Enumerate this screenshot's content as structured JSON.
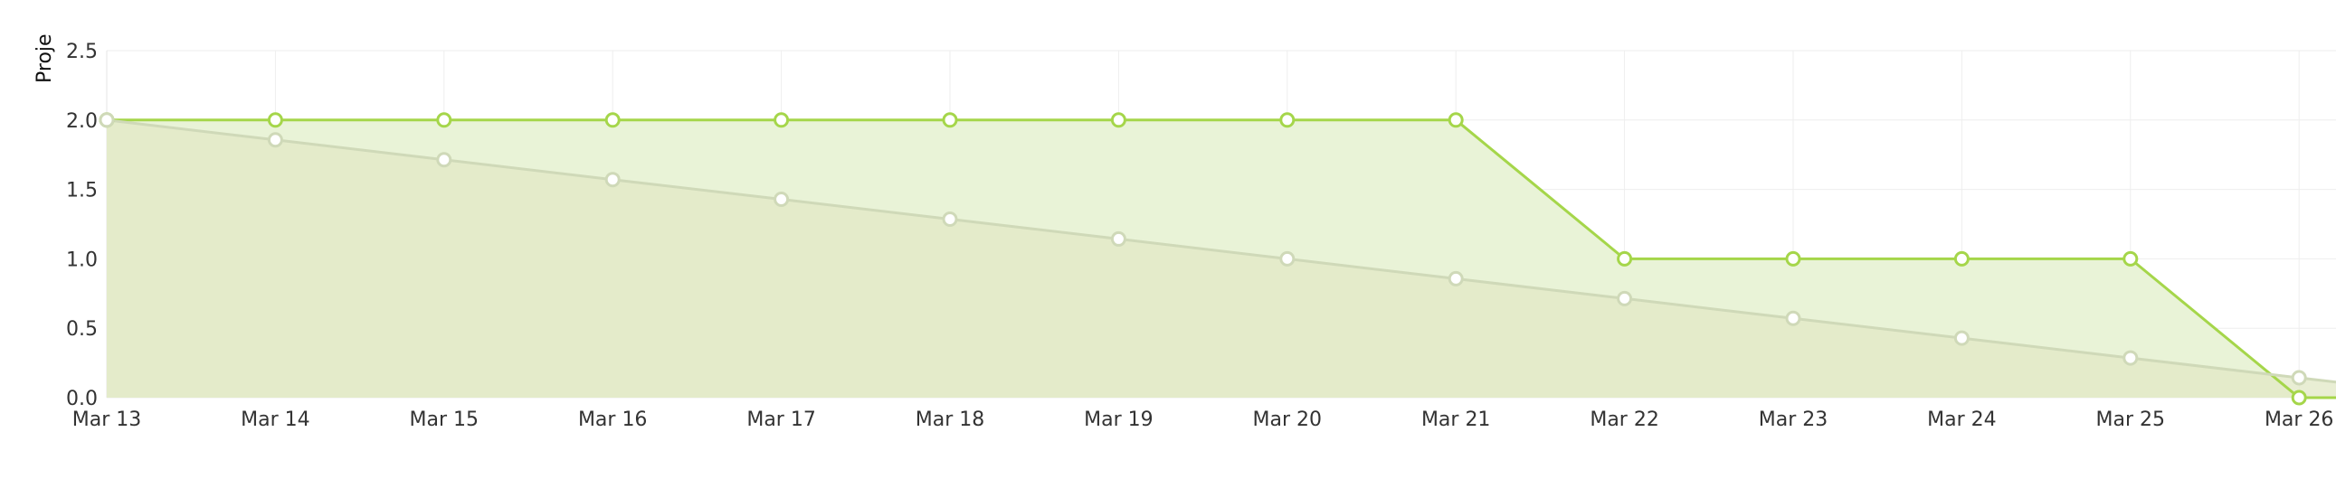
{
  "chart_data": {
    "type": "area",
    "ylabel": "Proje",
    "x": [
      "Mar 13",
      "Mar 14",
      "Mar 15",
      "Mar 16",
      "Mar 17",
      "Mar 18",
      "Mar 19",
      "Mar 20",
      "Mar 21",
      "Mar 22",
      "Mar 23",
      "Mar 24",
      "Mar 25",
      "Mar 26"
    ],
    "ylim": [
      0,
      2.5
    ],
    "yticks": [
      "0.0",
      "0.5",
      "1.0",
      "1.5",
      "2.0",
      "2.5"
    ],
    "grid": true,
    "series": [
      {
        "values": [
          2.0,
          1.857,
          1.714,
          1.571,
          1.429,
          1.286,
          1.143,
          1.0,
          0.857,
          0.714,
          0.571,
          0.429,
          0.286,
          0.143
        ],
        "color": "#cfd9b8",
        "fill": "#e1e8c6"
      },
      {
        "values": [
          2.0,
          2.0,
          2.0,
          2.0,
          2.0,
          2.0,
          2.0,
          2.0,
          2.0,
          1.0,
          1.0,
          1.0,
          1.0,
          0.0
        ],
        "color": "#a5d64a",
        "fill": "#e9f3d7"
      }
    ]
  }
}
